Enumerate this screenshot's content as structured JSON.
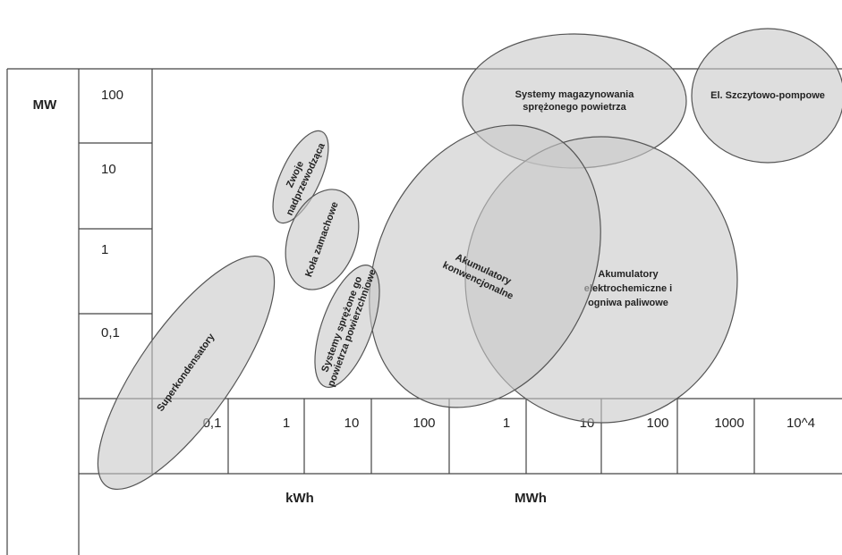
{
  "y_axis": {
    "label": "MW",
    "ticks": [
      "100",
      "10",
      "1",
      "0,1"
    ]
  },
  "x_axis": {
    "ticks": [
      "0,1",
      "1",
      "10",
      "100",
      "1",
      "10",
      "100",
      "1000",
      "10^4"
    ],
    "units": [
      "kWh",
      "MWh"
    ]
  },
  "regions": [
    {
      "label": [
        "Systemy magazynowania",
        "sprężonego powietrza"
      ]
    },
    {
      "label": [
        "El. Szczytowo-pompowe"
      ]
    },
    {
      "label": [
        "Akumulatory",
        "elektrochemiczne i",
        "ogniwa paliwowe"
      ]
    },
    {
      "label": [
        "Akumulatory",
        "konwencjonalne"
      ]
    },
    {
      "label": [
        "Superkondensatory"
      ]
    },
    {
      "label": [
        "Zwoje",
        "nadprzewodząca"
      ]
    },
    {
      "label": [
        "Koła zamachowe"
      ]
    },
    {
      "label": [
        "Systemy sprężone go",
        "powietrza powierzchniowe"
      ]
    }
  ]
}
